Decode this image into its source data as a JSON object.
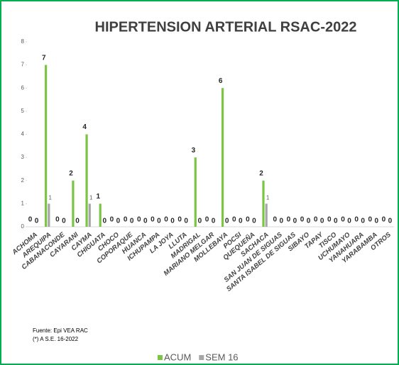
{
  "chart_data": {
    "type": "bar",
    "title": "HIPERTENSION ARTERIAL RSAC-2022",
    "source": "Fuente:  Epi VEA RAC",
    "note": "(*) A S.E. 16-2022",
    "categories": [
      "ACHOMA",
      "AREQUIPA",
      "CABANACONDE",
      "CAYARANI",
      "CAYMA",
      "CHIGUATA",
      "CHOCO",
      "COPORAQUE",
      "HUANCA",
      "ICHUPAMPA",
      "LA JOYA",
      "LLUTA",
      "MADRIGAL",
      "MARIANO MELGAR",
      "MOLLEBAYA",
      "POCSI",
      "QUEQUEÑA",
      "SACHACA",
      "SAN JUAN DE SIGUAS",
      "SANTA ISABEL DE SIGUAS",
      "SIBAYO",
      "TAPAY",
      "TISCO",
      "UCHUMAYO",
      "YANAHUARA",
      "YARABAMBA",
      "OTROS"
    ],
    "series": [
      {
        "name": "ACUM",
        "color": "#7cc443",
        "values": [
          0,
          7,
          0,
          2,
          4,
          1,
          0,
          0,
          0,
          0,
          0,
          0,
          3,
          0,
          6,
          0,
          0,
          2,
          0,
          0,
          0,
          0,
          0,
          0,
          0,
          0,
          0
        ]
      },
      {
        "name": "SEM 16",
        "color": "#a6a6a6",
        "values": [
          0,
          1,
          0,
          0,
          1,
          0,
          0,
          0,
          0,
          0,
          0,
          0,
          0,
          0,
          0,
          0,
          0,
          1,
          0,
          0,
          0,
          0,
          0,
          0,
          0,
          0,
          0
        ]
      }
    ],
    "ylim": [
      0,
      8
    ],
    "yticks": [
      0,
      1,
      2,
      3,
      4,
      5,
      6,
      7,
      8
    ],
    "grid": false
  }
}
